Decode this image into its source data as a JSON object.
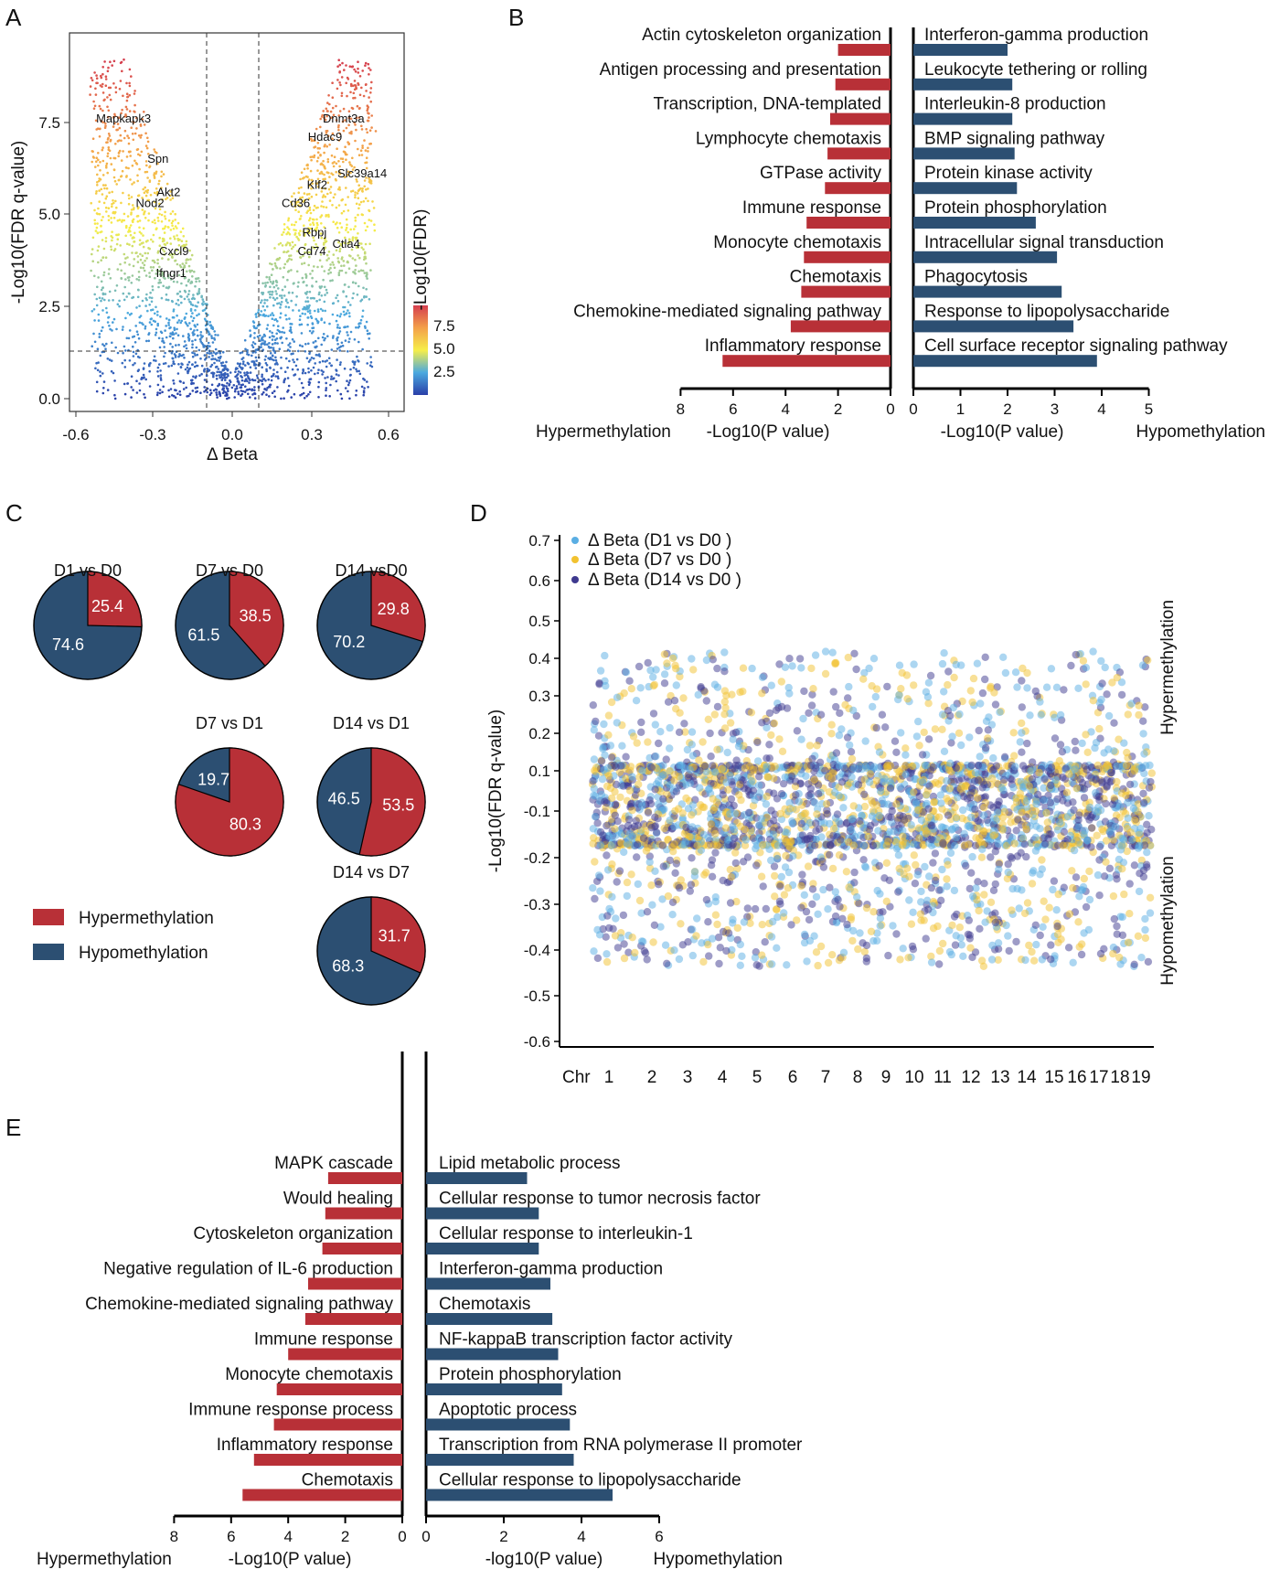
{
  "panels": {
    "a": "A",
    "b": "B",
    "c": "C",
    "d": "D",
    "e": "E"
  },
  "colors": {
    "hyper": "#b83037",
    "hypo": "#2c4f72",
    "d1": "#5aaee3",
    "d7": "#f2c230",
    "d14": "#3e3a8f"
  },
  "chart_data": [
    {
      "id": "A",
      "type": "scatter",
      "xlabel": "Δ Beta",
      "ylabel": "-Log10(FDR q-value)",
      "xlim": [
        -0.65,
        0.65
      ],
      "ylim": [
        -0.3,
        9.8
      ],
      "xticks": [
        "-0.6",
        "-0.3",
        "0.0",
        "0.3",
        "0.6"
      ],
      "yticks": [
        "0.0",
        "2.5",
        "5.0",
        "7.5"
      ],
      "threshold_lines": {
        "x": [
          -0.1,
          0.1
        ],
        "y": 1.3
      },
      "colorbar": {
        "label": "-Log10(FDR)",
        "ticks": [
          "2.5",
          "5.0",
          "7.5"
        ]
      },
      "genes": [
        {
          "name": "Mapkapk3",
          "x": -0.41,
          "y": 7.5
        },
        {
          "name": "Spn",
          "x": -0.28,
          "y": 6.4
        },
        {
          "name": "Akt2",
          "x": -0.24,
          "y": 5.5
        },
        {
          "name": "Nod2",
          "x": -0.31,
          "y": 5.2
        },
        {
          "name": "Cxcl9",
          "x": -0.22,
          "y": 3.9
        },
        {
          "name": "Ifngr1",
          "x": -0.23,
          "y": 3.3
        },
        {
          "name": "Dnmt3a",
          "x": 0.42,
          "y": 7.5
        },
        {
          "name": "Hdac9",
          "x": 0.35,
          "y": 7.0
        },
        {
          "name": "Slc39a14",
          "x": 0.49,
          "y": 6.0
        },
        {
          "name": "Klf2",
          "x": 0.32,
          "y": 5.7
        },
        {
          "name": "Cd36",
          "x": 0.24,
          "y": 5.2
        },
        {
          "name": "Rbpj",
          "x": 0.31,
          "y": 4.4
        },
        {
          "name": "Ctla4",
          "x": 0.43,
          "y": 4.1
        },
        {
          "name": "Cd74",
          "x": 0.3,
          "y": 3.9
        }
      ]
    },
    {
      "id": "B",
      "type": "bar",
      "left": {
        "side_label": "Hypermethylation",
        "xlabel": "-Log10(P value)",
        "xticks": [
          "8",
          "6",
          "4",
          "2",
          "0"
        ],
        "xlim": [
          0,
          8
        ],
        "categories": [
          "Actin cytoskeleton organization",
          "Antigen processing and presentation",
          "Transcription, DNA-templated",
          "Lymphocyte chemotaxis",
          "GTPase activity",
          "Immune response",
          "Monocyte chemotaxis",
          "Chemotaxis",
          "Chemokine-mediated signaling pathway",
          "Inflammatory response"
        ],
        "values": [
          2.0,
          2.1,
          2.3,
          2.4,
          2.5,
          3.2,
          3.3,
          3.4,
          3.8,
          6.4
        ]
      },
      "right": {
        "side_label": "Hypomethylation",
        "xlabel": "-Log10(P value)",
        "xticks": [
          "0",
          "1",
          "2",
          "3",
          "4",
          "5"
        ],
        "xlim": [
          0,
          5
        ],
        "categories": [
          "Interferon-gamma production",
          "Leukocyte tethering or rolling",
          "Interleukin-8 production",
          "BMP signaling pathway",
          "Protein kinase activity",
          "Protein phosphorylation",
          "Intracellular signal transduction",
          "Phagocytosis",
          "Response to lipopolysaccharide",
          "Cell surface receptor signaling pathway"
        ],
        "values": [
          2.0,
          2.1,
          2.1,
          2.15,
          2.2,
          2.6,
          3.05,
          3.15,
          3.4,
          3.9
        ]
      }
    },
    {
      "id": "C",
      "type": "pie",
      "legend": [
        "Hypermethylation",
        "Hypomethylation"
      ],
      "pies": [
        {
          "title": "D1 vs D0",
          "hyper": 25.4,
          "hypo": 74.6
        },
        {
          "title": "D7 vs D0",
          "hyper": 38.5,
          "hypo": 61.5
        },
        {
          "title": "D14 vsD0",
          "hyper": 29.8,
          "hypo": 70.2
        },
        {
          "title": "D7 vs D1",
          "hyper": 80.3,
          "hypo": 19.7
        },
        {
          "title": "D14 vs D1",
          "hyper": 53.5,
          "hypo": 46.5
        },
        {
          "title": "D14 vs D7",
          "hyper": 31.7,
          "hypo": 68.3
        }
      ],
      "labels": {
        "p0": {
          "hyper": "25.4",
          "hypo": "74.6"
        },
        "p1": {
          "hyper": "38.5",
          "hypo": "61.5"
        },
        "p2": {
          "hyper": "29.8",
          "hypo": "70.2"
        },
        "p3": {
          "hyper": "80.3",
          "hypo": "19.7"
        },
        "p4": {
          "hyper": "53.5",
          "hypo": "46.5"
        },
        "p5": {
          "hyper": "31.7",
          "hypo": "68.3"
        }
      }
    },
    {
      "id": "D",
      "type": "scatter",
      "ylabel": "-Log10(FDR q-value)",
      "yticks": [
        "0.7",
        "0.6",
        "0.5",
        "0.4",
        "0.3",
        "0.2",
        "0.1",
        "-0.1",
        "-0.2",
        "-0.3",
        "-0.4",
        "-0.5",
        "-0.6"
      ],
      "xlabel": "Chr",
      "chromosomes": [
        "1",
        "2",
        "3",
        "4",
        "5",
        "6",
        "7",
        "8",
        "9",
        "10",
        "11",
        "12",
        "13",
        "14",
        "15",
        "16",
        "17",
        "18",
        "19"
      ],
      "series": [
        {
          "name": "Δ Beta (D1 vs D0 )"
        },
        {
          "name": "Δ Beta (D7 vs D0 )"
        },
        {
          "name": "Δ Beta (D14 vs D0 )"
        }
      ],
      "region_labels": {
        "upper": "Hypermethylation",
        "lower": "Hypomethylation"
      }
    },
    {
      "id": "E",
      "type": "bar",
      "left": {
        "side_label": "Hypermethylation",
        "xlabel": "-Log10(P value)",
        "xticks": [
          "8",
          "6",
          "4",
          "2",
          "0"
        ],
        "xlim": [
          0,
          8
        ],
        "categories": [
          "MAPK cascade",
          "Would healing",
          "Cytoskeleton organization",
          "Negative regulation of IL-6 production",
          "Chemokine-mediated signaling pathway",
          "Immune response",
          "Monocyte chemotaxis",
          "Immune response process",
          "Inflammatory response",
          "Chemotaxis"
        ],
        "values": [
          2.6,
          2.7,
          2.8,
          3.3,
          3.4,
          4.0,
          4.4,
          4.5,
          5.2,
          5.6
        ]
      },
      "right": {
        "side_label": "Hypomethylation",
        "xlabel": "-log10(P value)",
        "xticks": [
          "0",
          "2",
          "4",
          "6"
        ],
        "xlim": [
          0,
          6
        ],
        "categories": [
          "Lipid metabolic process",
          "Cellular response to tumor necrosis factor",
          "Cellular response to interleukin-1",
          "Interferon-gamma production",
          "Chemotaxis",
          "NF-kappaB transcription factor activity",
          "Protein phosphorylation",
          "Apoptotic process",
          "Transcription from RNA polymerase II promoter",
          "Cellular response to lipopolysaccharide"
        ],
        "values": [
          2.6,
          2.9,
          2.9,
          3.2,
          3.25,
          3.4,
          3.5,
          3.7,
          3.8,
          4.8
        ]
      }
    }
  ]
}
